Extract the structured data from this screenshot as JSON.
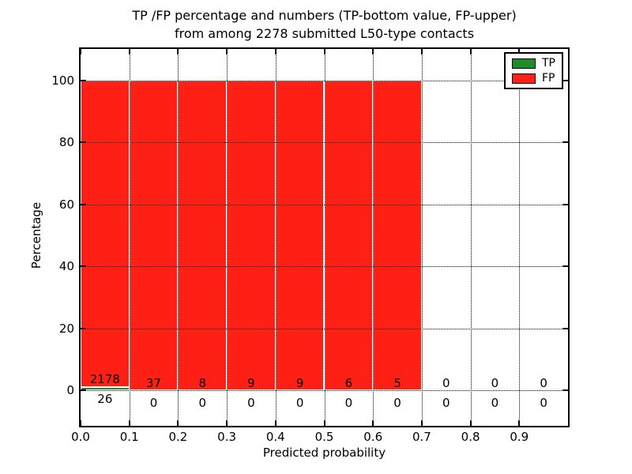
{
  "chart_data": {
    "type": "bar",
    "stacked": true,
    "title_lines": [
      "TP /FP percentage and numbers (TP-bottom value, FP-upper)",
      "from among 2278 submitted L50-type contacts"
    ],
    "xlabel": "Predicted probability",
    "ylabel": "Percentage",
    "total_submitted_contacts": 2278,
    "bin_width": 0.1,
    "bin_starts": [
      0.0,
      0.1,
      0.2,
      0.3,
      0.4,
      0.5,
      0.6,
      0.7,
      0.8,
      0.9
    ],
    "xtick_labels": [
      "0.0",
      "0.1",
      "0.2",
      "0.3",
      "0.4",
      "0.5",
      "0.6",
      "0.7",
      "0.8",
      "0.9"
    ],
    "ytick_values": [
      0,
      20,
      40,
      60,
      80,
      100
    ],
    "xlim": [
      0.0,
      1.0
    ],
    "ylim": [
      -11.4,
      110.1
    ],
    "grid": "dotted black, horizontal and vertical, drawn above bars",
    "bar_edge_color": "#ffffff",
    "series": [
      {
        "name": "TP",
        "color": "#208c28",
        "counts": [
          26,
          0,
          0,
          0,
          0,
          0,
          0,
          0,
          0,
          0
        ],
        "pct": [
          1.18,
          0,
          0,
          0,
          0,
          0,
          0,
          0,
          0,
          0
        ]
      },
      {
        "name": "FP",
        "color": "#ff2015",
        "counts": [
          2178,
          37,
          8,
          9,
          9,
          6,
          5,
          0,
          0,
          0
        ],
        "pct": [
          98.82,
          100,
          100,
          100,
          100,
          100,
          100,
          0,
          0,
          0
        ]
      }
    ],
    "legend": {
      "position": "upper right",
      "entries": [
        {
          "label": "TP",
          "color": "#208c28"
        },
        {
          "label": "FP",
          "color": "#ff2015"
        }
      ]
    }
  }
}
